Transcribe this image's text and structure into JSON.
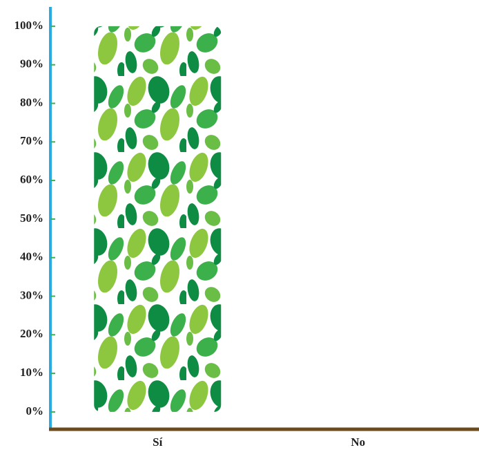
{
  "chart_data": {
    "type": "bar",
    "categories": [
      "Sí",
      "No"
    ],
    "values": [
      100,
      0
    ],
    "ylim": [
      -4.5,
      105
    ],
    "yticks": [
      {
        "value": 0,
        "label": "0%"
      },
      {
        "value": 10,
        "label": "10%"
      },
      {
        "value": 20,
        "label": "20%"
      },
      {
        "value": 30,
        "label": "30%"
      },
      {
        "value": 40,
        "label": "40%"
      },
      {
        "value": 50,
        "label": "50%"
      },
      {
        "value": 60,
        "label": "60%"
      },
      {
        "value": 70,
        "label": "70%"
      },
      {
        "value": 80,
        "label": "80%"
      },
      {
        "value": 90,
        "label": "90%"
      },
      {
        "value": 100,
        "label": "100%"
      }
    ],
    "grid": false
  }
}
